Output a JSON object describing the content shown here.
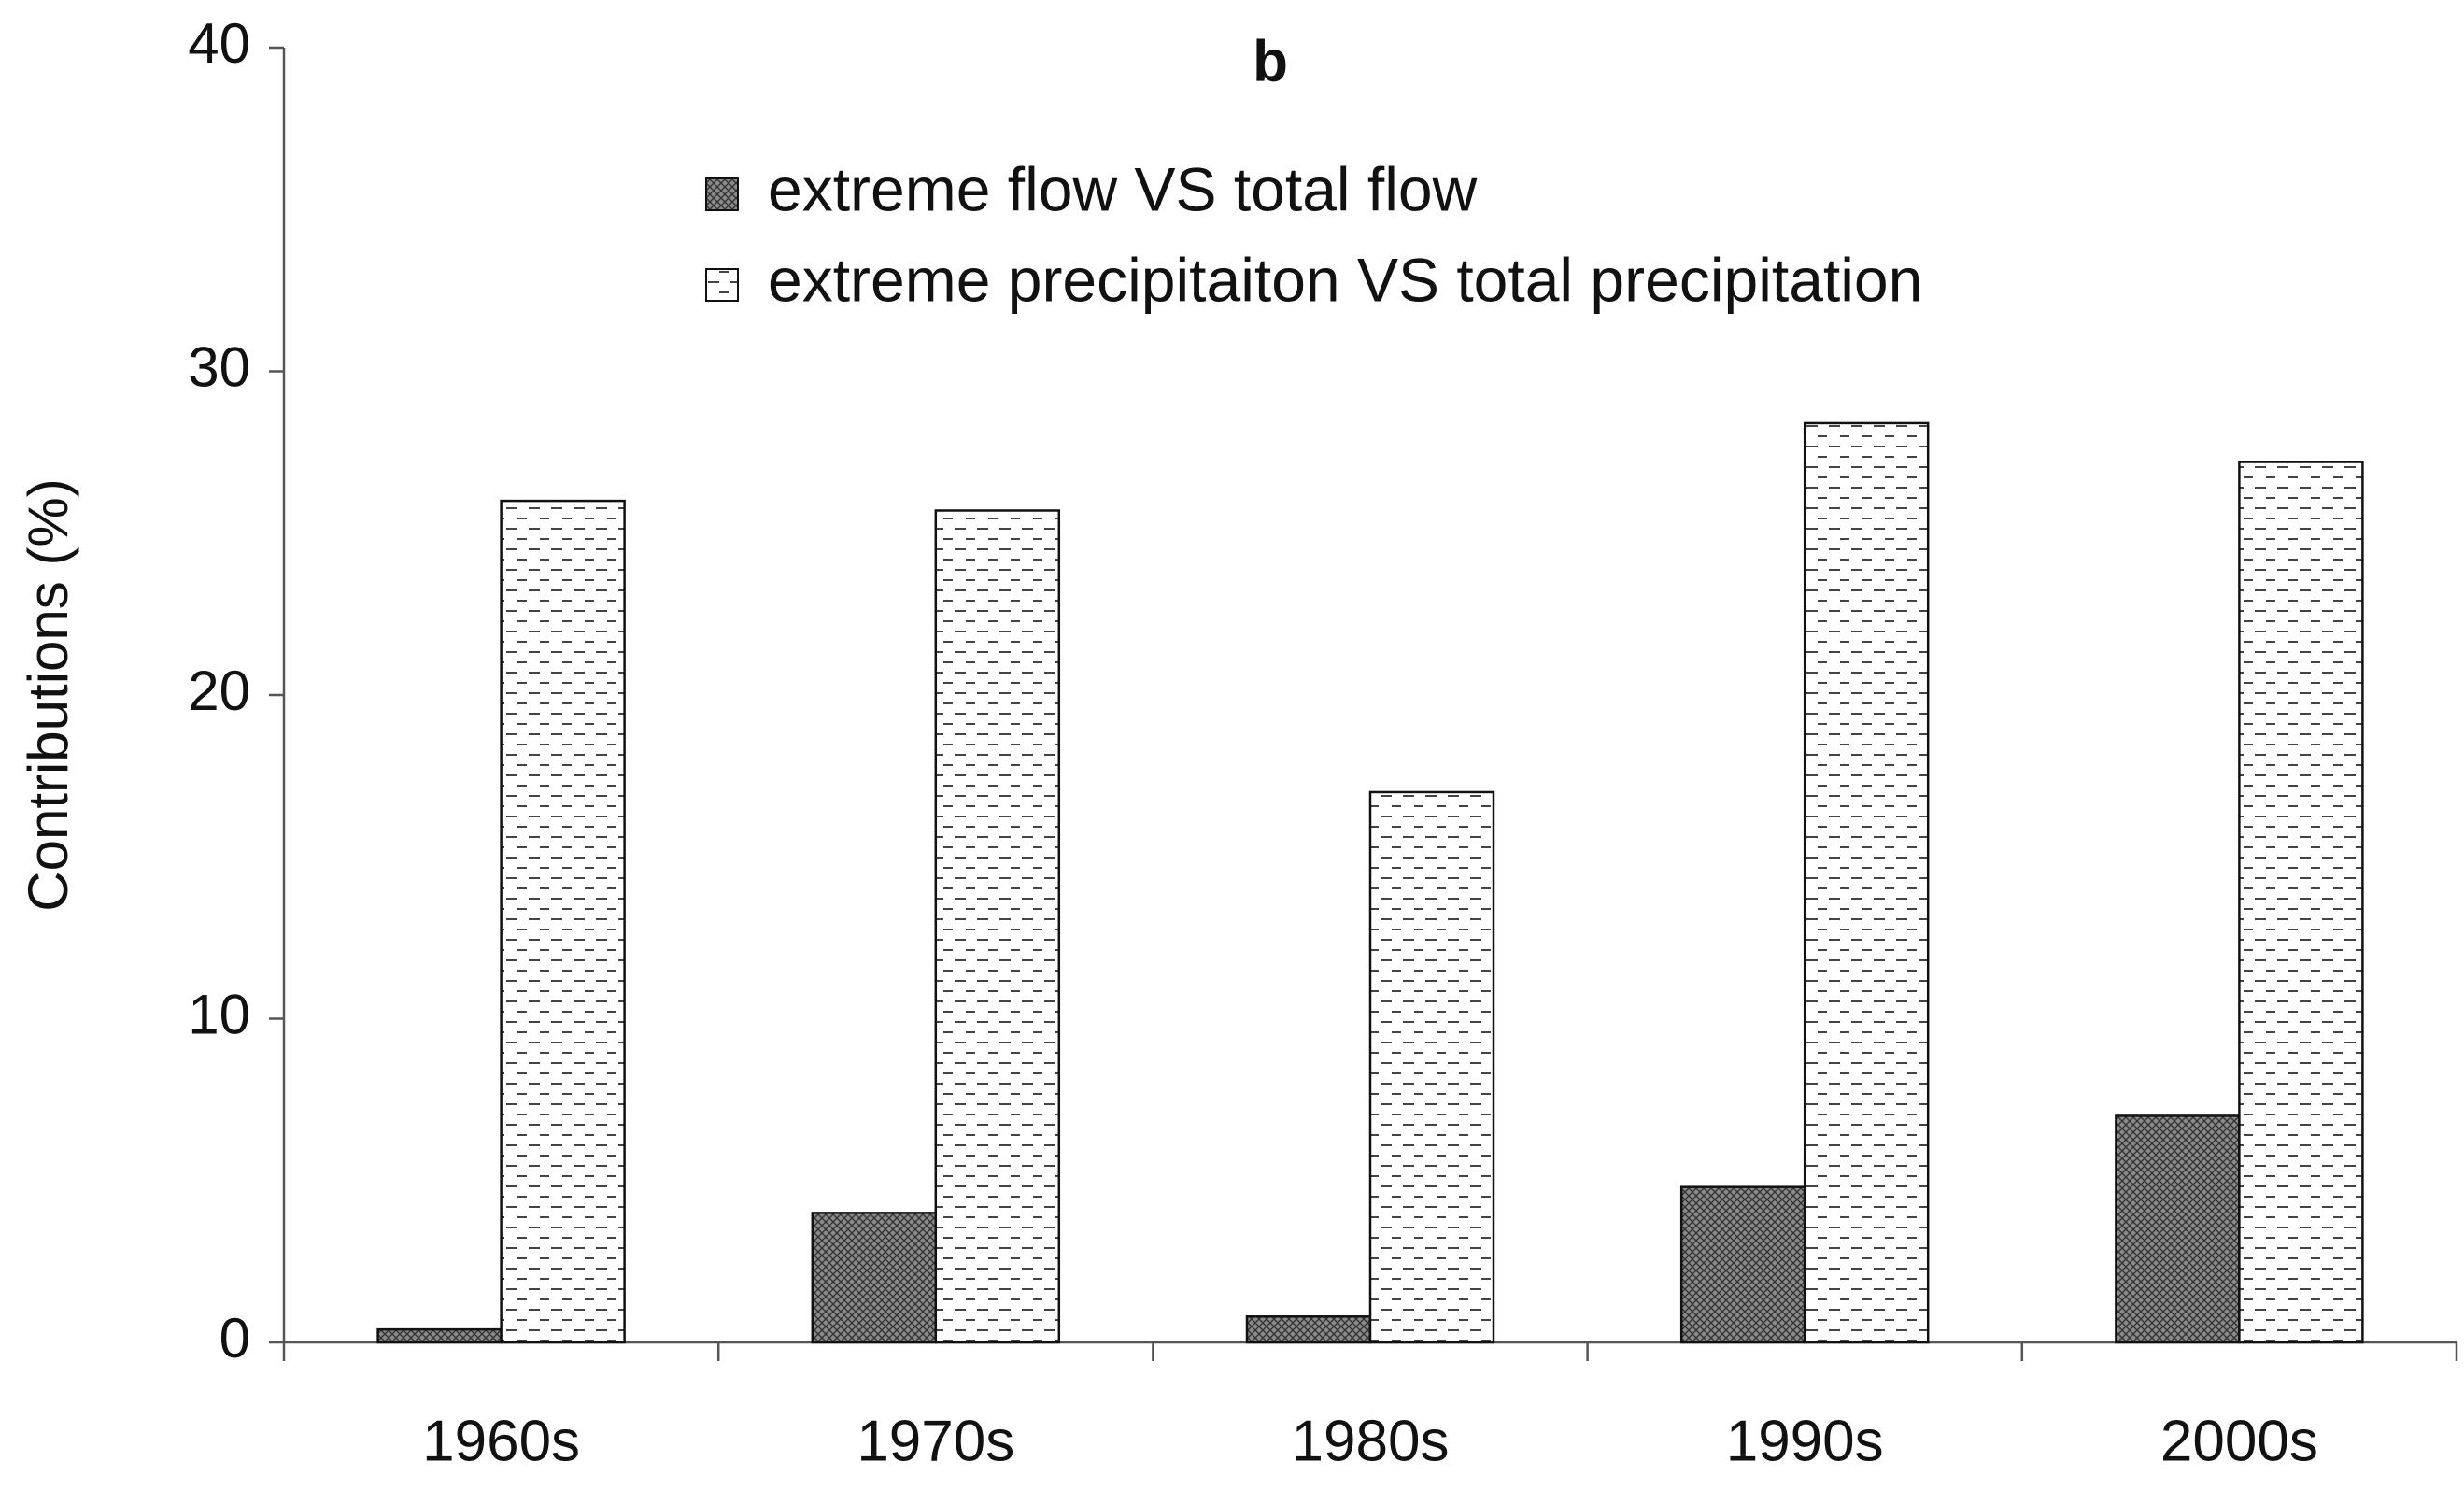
{
  "chart_data": {
    "type": "bar",
    "title": "b",
    "y_label": "Contributions (%)",
    "categories": [
      "1960s",
      "1970s",
      "1980s",
      "1990s",
      "2000s"
    ],
    "series": [
      {
        "name": "extreme flow VS total flow",
        "color": "#8a8a8a",
        "pattern": "crosshatch",
        "values": [
          0.4,
          4.0,
          0.8,
          4.8,
          7.0
        ]
      },
      {
        "name": "extreme precipitaiton VS total precipitation",
        "color": "#ffffff",
        "pattern": "dashes",
        "values": [
          26.0,
          25.7,
          17.0,
          28.4,
          27.2
        ]
      }
    ],
    "ylim": [
      0,
      40
    ],
    "yticks": [
      0,
      10,
      20,
      30,
      40
    ],
    "grid": false,
    "legend": "top"
  }
}
